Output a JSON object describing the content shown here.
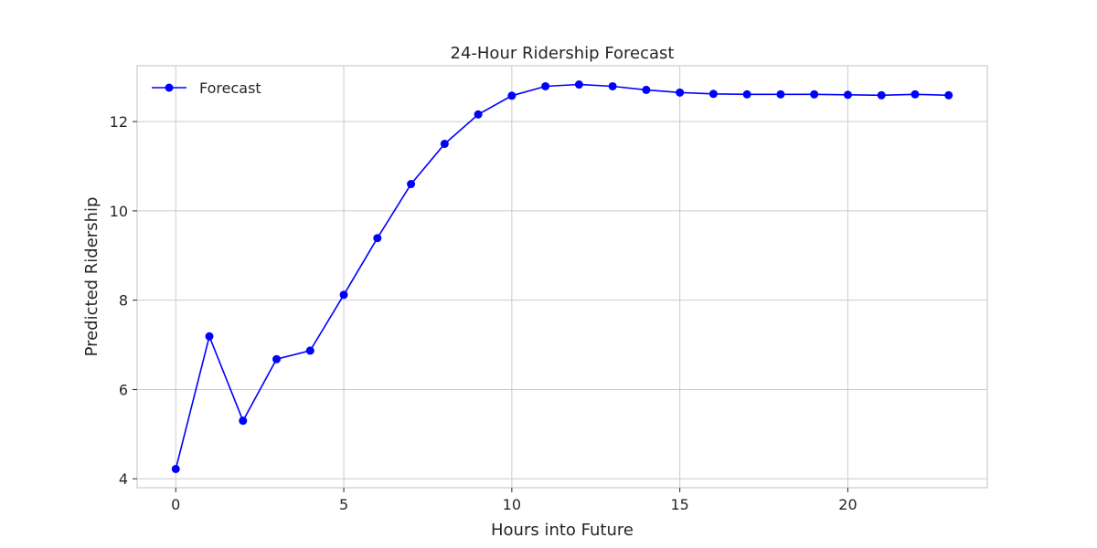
{
  "chart_data": {
    "type": "line",
    "title": "24-Hour Ridership Forecast",
    "xlabel": "Hours into Future",
    "ylabel": "Predicted Ridership",
    "xlim": [
      -1.15,
      24.15
    ],
    "ylim": [
      3.8,
      13.25
    ],
    "xticks": [
      0,
      5,
      10,
      15,
      20
    ],
    "yticks": [
      4,
      6,
      8,
      10,
      12
    ],
    "grid": true,
    "legend": {
      "position": "top-left"
    },
    "series": [
      {
        "name": "Forecast",
        "color": "#0000ff",
        "marker": "circle",
        "x": [
          0,
          1,
          2,
          3,
          4,
          5,
          6,
          7,
          8,
          9,
          10,
          11,
          12,
          13,
          14,
          15,
          16,
          17,
          18,
          19,
          20,
          21,
          22,
          23
        ],
        "y": [
          4.22,
          7.19,
          5.3,
          6.68,
          6.87,
          8.12,
          9.39,
          10.6,
          11.5,
          12.16,
          12.58,
          12.79,
          12.83,
          12.79,
          12.71,
          12.65,
          12.62,
          12.61,
          12.61,
          12.61,
          12.6,
          12.59,
          12.61,
          12.59
        ]
      }
    ]
  }
}
